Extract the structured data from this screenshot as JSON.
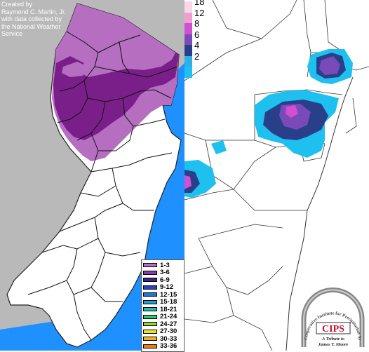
{
  "credit": {
    "lines": [
      "Created by",
      "Raymond C. Martin, Jr.",
      "with data collected by",
      "the National Weather",
      "Service"
    ]
  },
  "nj_legend": {
    "items": [
      {
        "label": "1-3",
        "color": "#b56ec0"
      },
      {
        "label": "3-6",
        "color": "#8d3aa6"
      },
      {
        "label": "6-9",
        "color": "#3b2487"
      },
      {
        "label": "9-12",
        "color": "#2b42c0"
      },
      {
        "label": "12-15",
        "color": "#1f74d8"
      },
      {
        "label": "15-18",
        "color": "#1e9fd6"
      },
      {
        "label": "18-21",
        "color": "#20bfae"
      },
      {
        "label": "21-24",
        "color": "#2fc86a"
      },
      {
        "label": "24-27",
        "color": "#8fd63a"
      },
      {
        "label": "27-30",
        "color": "#f1e51c"
      },
      {
        "label": "30-33",
        "color": "#f4b21a"
      },
      {
        "label": "33-36",
        "color": "#f07a1a"
      }
    ]
  },
  "scale_legend": {
    "items": [
      {
        "label": "18",
        "color": "#f8d8e8"
      },
      {
        "label": "12",
        "color": "#f0a0d0"
      },
      {
        "label": "8",
        "color": "#d24ed2"
      },
      {
        "label": "6",
        "color": "#7a4bb8"
      },
      {
        "label": "4",
        "color": "#2a3f8a"
      },
      {
        "label": "2",
        "color": "#2bb2e8"
      },
      {
        "label": "",
        "color": "#1ec0f0"
      }
    ]
  },
  "logo": {
    "ring_text": "Cooperative Institute for Precipitation Systems",
    "acronym": "CIPS",
    "tribute_line1": "A Tribute to",
    "tribute_line2": "James T. Moore"
  },
  "colors": {
    "ocean": "#1e90ff",
    "land": "#b9b9b9",
    "state_fill": "#ffffff",
    "snow_light": "#b56ec0",
    "snow_dark": "#7a1f8a"
  }
}
